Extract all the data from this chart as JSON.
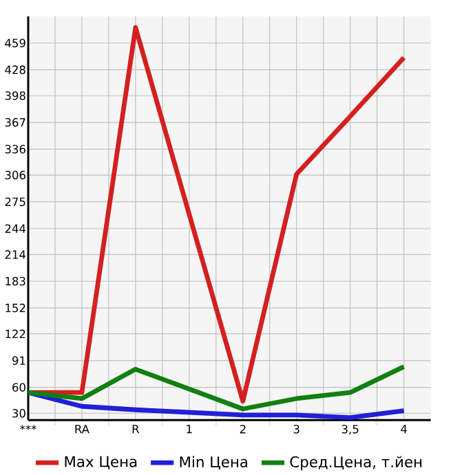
{
  "chart_data": {
    "type": "line",
    "categories": [
      "***",
      "RA",
      "R",
      "1",
      "2",
      "3",
      "3,5",
      "4"
    ],
    "series": [
      {
        "name": "Max Цена",
        "color": "#d42020",
        "values": [
          54,
          54,
          477,
          null,
          44,
          307,
          374,
          442
        ]
      },
      {
        "name": "Min Цена",
        "color": "#2020d8",
        "values": [
          54,
          38,
          34,
          null,
          28,
          28,
          25,
          33
        ]
      },
      {
        "name": "Сред.Цена, т.йен",
        "color": "#108010",
        "values": [
          54,
          47,
          81,
          null,
          35,
          47,
          54,
          84
        ]
      }
    ],
    "ylim": [
      22,
      490
    ],
    "yticks": [
      30,
      60,
      91,
      122,
      152,
      183,
      214,
      244,
      275,
      306,
      336,
      367,
      398,
      428,
      459
    ],
    "grid": true,
    "legend": "bottom",
    "marker": "none",
    "line_style": "solid"
  }
}
